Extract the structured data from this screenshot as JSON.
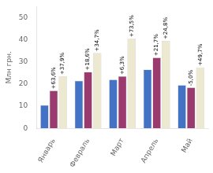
{
  "chart_data": {
    "type": "bar",
    "categories": [
      "Январь",
      "Февраль",
      "Март",
      "Апрель",
      "Май"
    ],
    "series": [
      {
        "color": "#4472c4",
        "values": [
          10.5,
          21.5,
          22.0,
          26.5,
          19.5
        ]
      },
      {
        "color": "#9b3a6e",
        "values": [
          17.0,
          25.5,
          23.5,
          32.0,
          18.5
        ],
        "annotations": [
          "+63,6%",
          "+18,6%",
          "+6,3%",
          "+21,7%",
          "-5,0%"
        ]
      },
      {
        "color": "#ede8d0",
        "values": [
          23.5,
          34.0,
          40.5,
          39.5,
          27.5
        ],
        "annotations": [
          "+37,9%",
          "+34,7%",
          "+73,5%",
          "+24,8%",
          "+49,7%"
        ]
      }
    ],
    "ylabel": "Млн грн.",
    "ylim": [
      0,
      55
    ],
    "yticks": [
      0,
      10,
      20,
      30,
      40,
      50
    ],
    "grid": false
  }
}
